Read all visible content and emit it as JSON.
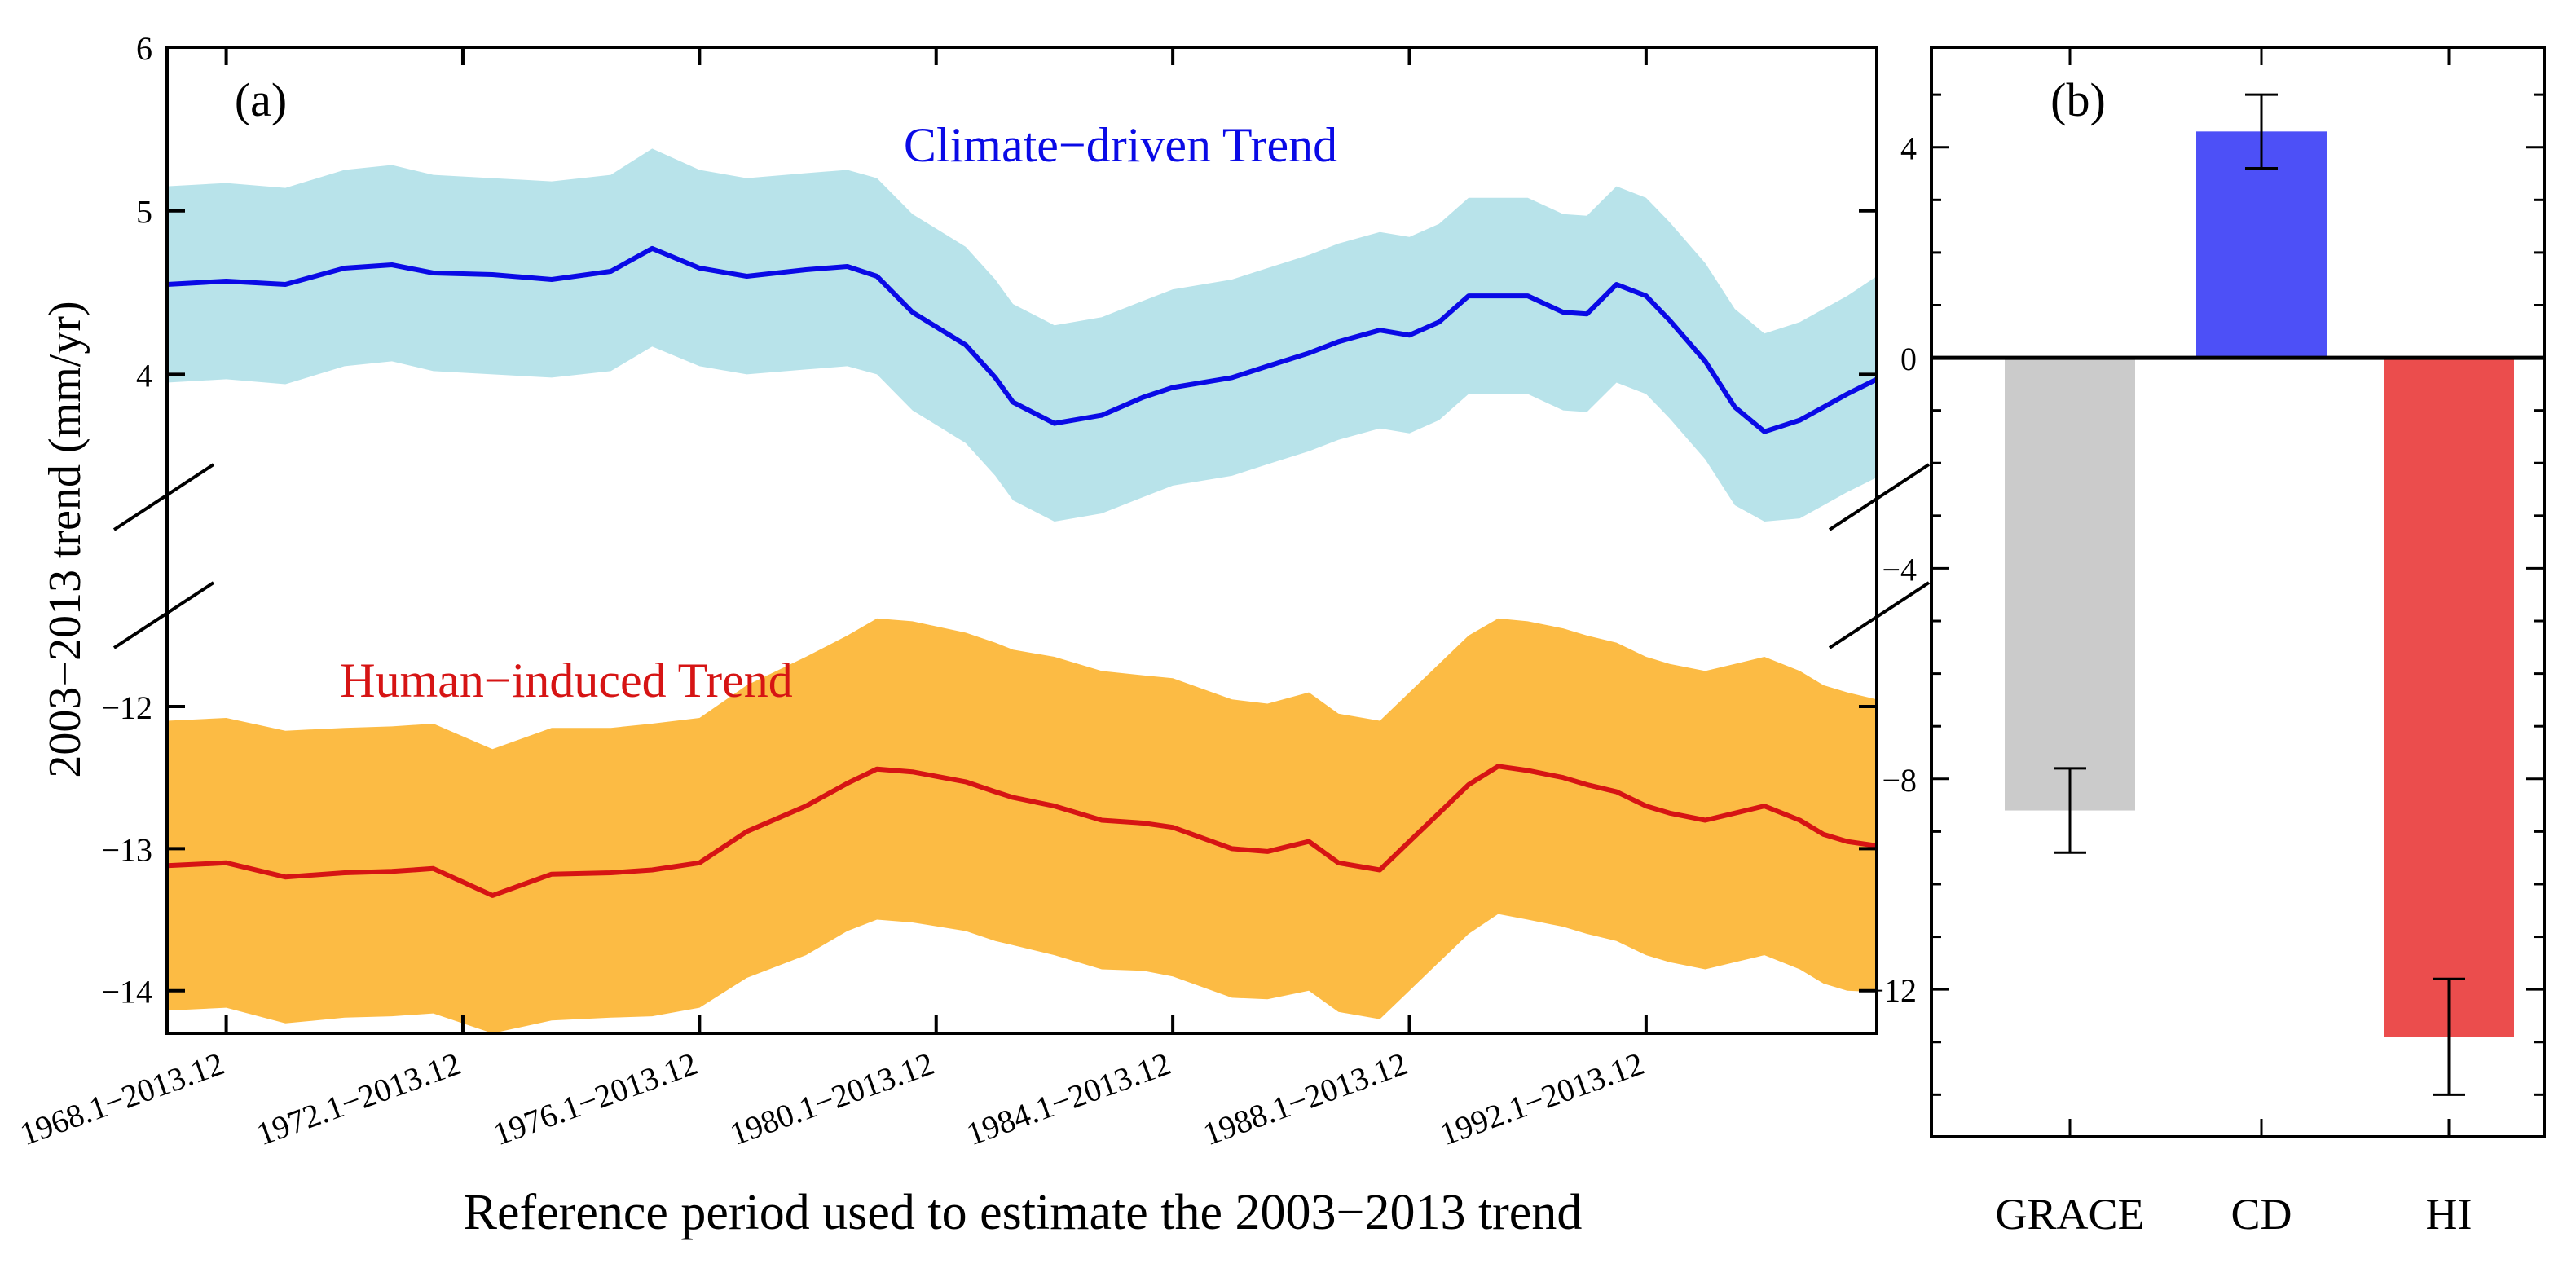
{
  "colors": {
    "cd_band": "#b8e3ea",
    "cd_line": "#0a0ae6",
    "hi_band": "#fcbb44",
    "hi_line": "#d61414",
    "bar_grace": "#cbcbcb",
    "bar_cd": "#4d50f7",
    "bar_hi": "#eb4d4d",
    "axis": "#000000"
  },
  "chart_data": [
    {
      "panel": "(a)",
      "type": "line",
      "ylabel": "2003−2013 trend (mm/yr)",
      "xlabel": "Reference period used to estimate the 2003−2013 trend",
      "x_range": [
        1967.0,
        1995.9
      ],
      "x_tick_labels": [
        {
          "x": 1968,
          "label": "1968.1−2013.12"
        },
        {
          "x": 1972,
          "label": "1972.1−2013.12"
        },
        {
          "x": 1976,
          "label": "1976.1−2013.12"
        },
        {
          "x": 1980,
          "label": "1980.1−2013.12"
        },
        {
          "x": 1984,
          "label": "1984.1−2013.12"
        },
        {
          "x": 1988,
          "label": "1988.1−2013.12"
        },
        {
          "x": 1992,
          "label": "1992.1−2013.12"
        }
      ],
      "upper_axis": {
        "ylim": [
          3.2,
          6.0
        ],
        "ticks": [
          4,
          5,
          6
        ],
        "tick_labels": [
          "4",
          "5",
          "6"
        ]
      },
      "lower_axis": {
        "ylim": [
          -14.3,
          -11.3
        ],
        "ticks": [
          -14,
          -13,
          -12
        ],
        "tick_labels": [
          "−14",
          "−13",
          "−12"
        ]
      },
      "axis_break": true,
      "series": [
        {
          "name": "Climate−driven Trend",
          "axis": "upper",
          "x": [
            1967.0,
            1968.0,
            1969.0,
            1970.0,
            1970.8,
            1971.5,
            1972.5,
            1973.5,
            1974.5,
            1975.2,
            1976.0,
            1976.8,
            1977.8,
            1978.5,
            1979.0,
            1979.6,
            1980.5,
            1981.0,
            1981.3,
            1982.0,
            1982.8,
            1983.5,
            1984.0,
            1985.0,
            1985.6,
            1986.3,
            1986.8,
            1987.5,
            1988.0,
            1988.5,
            1989.0,
            1989.5,
            1990.0,
            1990.6,
            1991.0,
            1991.5,
            1992.0,
            1992.4,
            1993.0,
            1993.5,
            1994.0,
            1994.6,
            1995.0,
            1995.4,
            1995.9
          ],
          "y": [
            4.55,
            4.57,
            4.55,
            4.65,
            4.67,
            4.62,
            4.61,
            4.58,
            4.63,
            4.77,
            4.65,
            4.6,
            4.64,
            4.66,
            4.6,
            4.38,
            4.18,
            3.98,
            3.83,
            3.7,
            3.75,
            3.86,
            3.92,
            3.98,
            4.05,
            4.13,
            4.2,
            4.27,
            4.24,
            4.32,
            4.48,
            4.48,
            4.48,
            4.38,
            4.37,
            4.55,
            4.48,
            4.33,
            4.08,
            3.8,
            3.65,
            3.72,
            3.8,
            3.88,
            3.97
          ],
          "upper": [
            5.15,
            5.17,
            5.14,
            5.25,
            5.28,
            5.22,
            5.2,
            5.18,
            5.22,
            5.38,
            5.25,
            5.2,
            5.23,
            5.25,
            5.2,
            4.98,
            4.78,
            4.58,
            4.43,
            4.3,
            4.35,
            4.45,
            4.52,
            4.58,
            4.65,
            4.73,
            4.8,
            4.87,
            4.84,
            4.92,
            5.08,
            5.08,
            5.08,
            4.98,
            4.97,
            5.15,
            5.08,
            4.93,
            4.68,
            4.4,
            4.25,
            4.32,
            4.4,
            4.48,
            4.6
          ],
          "lower": [
            3.95,
            3.97,
            3.94,
            4.05,
            4.08,
            4.02,
            4.0,
            3.98,
            4.02,
            4.17,
            4.05,
            4.0,
            4.03,
            4.05,
            4.0,
            3.78,
            3.58,
            3.38,
            3.23,
            3.1,
            3.15,
            3.25,
            3.32,
            3.38,
            3.45,
            3.53,
            3.6,
            3.67,
            3.64,
            3.72,
            3.88,
            3.88,
            3.88,
            3.78,
            3.77,
            3.95,
            3.88,
            3.73,
            3.48,
            3.2,
            3.05,
            3.12,
            3.2,
            3.28,
            3.37
          ]
        },
        {
          "name": "Human−induced Trend",
          "axis": "lower",
          "x": [
            1967.0,
            1968.0,
            1969.0,
            1970.0,
            1970.8,
            1971.5,
            1972.5,
            1973.5,
            1974.5,
            1975.2,
            1976.0,
            1976.8,
            1977.8,
            1978.5,
            1979.0,
            1979.6,
            1980.5,
            1981.0,
            1981.3,
            1982.0,
            1982.8,
            1983.5,
            1984.0,
            1985.0,
            1985.6,
            1986.3,
            1986.8,
            1987.5,
            1988.0,
            1988.5,
            1989.0,
            1989.5,
            1990.0,
            1990.6,
            1991.0,
            1991.5,
            1992.0,
            1992.4,
            1993.0,
            1993.5,
            1994.0,
            1994.6,
            1995.0,
            1995.4,
            1995.9
          ],
          "y": [
            -13.12,
            -13.1,
            -13.2,
            -13.17,
            -13.16,
            -13.14,
            -13.33,
            -13.18,
            -13.17,
            -13.15,
            -13.1,
            -12.88,
            -12.7,
            -12.54,
            -12.44,
            -12.46,
            -12.53,
            -12.6,
            -12.64,
            -12.7,
            -12.8,
            -12.82,
            -12.85,
            -13.0,
            -13.02,
            -12.95,
            -13.1,
            -13.15,
            -12.95,
            -12.75,
            -12.55,
            -12.42,
            -12.45,
            -12.5,
            -12.55,
            -12.6,
            -12.7,
            -12.75,
            -12.8,
            -12.75,
            -12.7,
            -12.8,
            -12.9,
            -12.95,
            -12.98
          ],
          "upper": [
            -12.1,
            -12.08,
            -12.17,
            -12.15,
            -12.14,
            -12.12,
            -12.3,
            -12.15,
            -12.15,
            -12.12,
            -12.08,
            -11.85,
            -11.65,
            -11.5,
            -11.38,
            -11.4,
            -11.48,
            -11.55,
            -11.6,
            -11.65,
            -11.75,
            -11.78,
            -11.8,
            -11.95,
            -11.98,
            -11.9,
            -12.05,
            -12.1,
            -11.9,
            -11.7,
            -11.5,
            -11.38,
            -11.4,
            -11.45,
            -11.5,
            -11.55,
            -11.65,
            -11.7,
            -11.75,
            -11.7,
            -11.65,
            -11.75,
            -11.85,
            -11.9,
            -11.95
          ],
          "lower": [
            -14.14,
            -14.12,
            -14.23,
            -14.19,
            -14.18,
            -14.16,
            -14.36,
            -14.21,
            -14.19,
            -14.18,
            -14.12,
            -13.91,
            -13.75,
            -13.58,
            -13.5,
            -13.52,
            -13.58,
            -13.65,
            -13.68,
            -13.75,
            -13.85,
            -13.86,
            -13.9,
            -14.05,
            -14.06,
            -14.0,
            -14.15,
            -14.2,
            -14.0,
            -13.8,
            -13.6,
            -13.46,
            -13.5,
            -13.55,
            -13.6,
            -13.65,
            -13.75,
            -13.8,
            -13.85,
            -13.8,
            -13.75,
            -13.85,
            -13.95,
            -14.0,
            -14.01
          ]
        }
      ]
    },
    {
      "panel": "(b)",
      "type": "bar",
      "categories": [
        "GRACE",
        "CD",
        "HI"
      ],
      "values": [
        -8.6,
        4.3,
        -12.9
      ],
      "errors": [
        0.8,
        0.7,
        1.1
      ],
      "ylim": [
        -14.8,
        5.9
      ],
      "y_ticks": [
        -12,
        -8,
        -4,
        0,
        4
      ],
      "y_tick_labels": [
        "−12",
        "−8",
        "−4",
        "0",
        "4"
      ]
    }
  ]
}
